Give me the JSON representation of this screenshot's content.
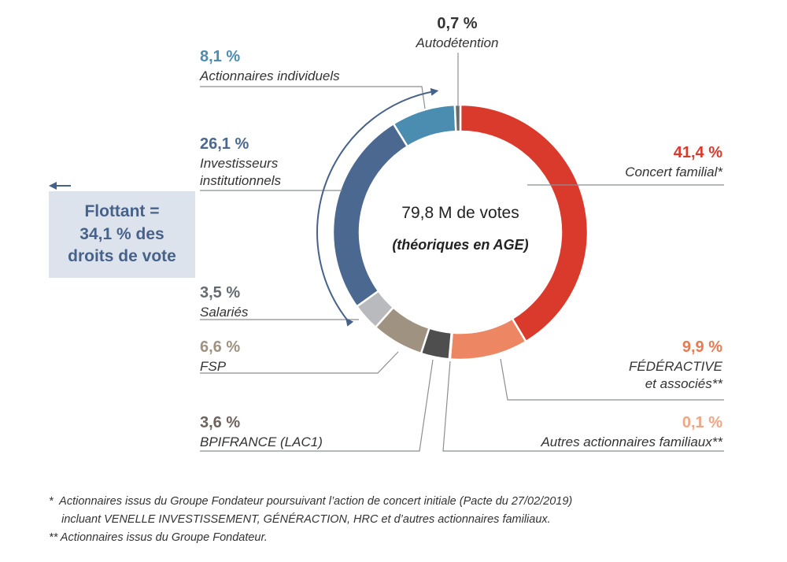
{
  "chart_data": {
    "type": "pie",
    "center_title": "79,8 M de votes",
    "center_subtitle": "(théoriques en AGE)",
    "slices": [
      {
        "key": "concert",
        "pct_label": "41,4 %",
        "value": 41.4,
        "label_lines": [
          "Concert familial*"
        ],
        "color": "#d93a2b",
        "label_color": "#d93a2b"
      },
      {
        "key": "federactive",
        "pct_label": "9,9 %",
        "value": 9.9,
        "label_lines": [
          "FÉDÉRACTIVE",
          "et associés**"
        ],
        "color": "#ec8663",
        "label_color": "#e57a55"
      },
      {
        "key": "autres",
        "pct_label": "0,1 %",
        "value": 0.1,
        "label_lines": [
          "Autres actionnaires familiaux**"
        ],
        "color": "#f2b9a0",
        "label_color": "#efa685"
      },
      {
        "key": "bpifrance",
        "pct_label": "3,6 %",
        "value": 3.6,
        "label_lines": [
          "BPIFRANCE (LAC1)"
        ],
        "color": "#4e4e4e",
        "label_color": "#6f625d"
      },
      {
        "key": "fsp",
        "pct_label": "6,6 %",
        "value": 6.6,
        "label_lines": [
          "FSP"
        ],
        "color": "#a09281",
        "label_color": "#a09281"
      },
      {
        "key": "salaries",
        "pct_label": "3,5 %",
        "value": 3.5,
        "label_lines": [
          "Salariés"
        ],
        "color": "#b8babd",
        "label_color": "#666a70"
      },
      {
        "key": "investisseurs",
        "pct_label": "26,1 %",
        "value": 26.1,
        "label_lines": [
          "Investisseurs",
          "institutionnels"
        ],
        "color": "#4b6891",
        "label_color": "#4b6891"
      },
      {
        "key": "individuels",
        "pct_label": "8,1 %",
        "value": 8.1,
        "label_lines": [
          "Actionnaires individuels"
        ],
        "color": "#4a8db0",
        "label_color": "#4a8db0"
      },
      {
        "key": "autodetention",
        "pct_label": "0,7 %",
        "value": 0.7,
        "label_lines": [
          "Autodétention"
        ],
        "color": "#6a6a6a",
        "label_color": "#333333"
      }
    ]
  },
  "flottant": {
    "text": "Flottant =\n34,1 % des\ndroits de vote",
    "color": "#47628a",
    "background": "#dde3ec"
  },
  "footnotes": [
    "*  Actionnaires issus du Groupe Fondateur poursuivant l’action de concert initiale (Pacte du 27/02/2019)",
    "    incluant VENELLE INVESTISSEMENT, GÉNÉRACTION, HRC et d’autres actionnaires familiaux.",
    "** Actionnaires issus du Groupe Fondateur."
  ]
}
